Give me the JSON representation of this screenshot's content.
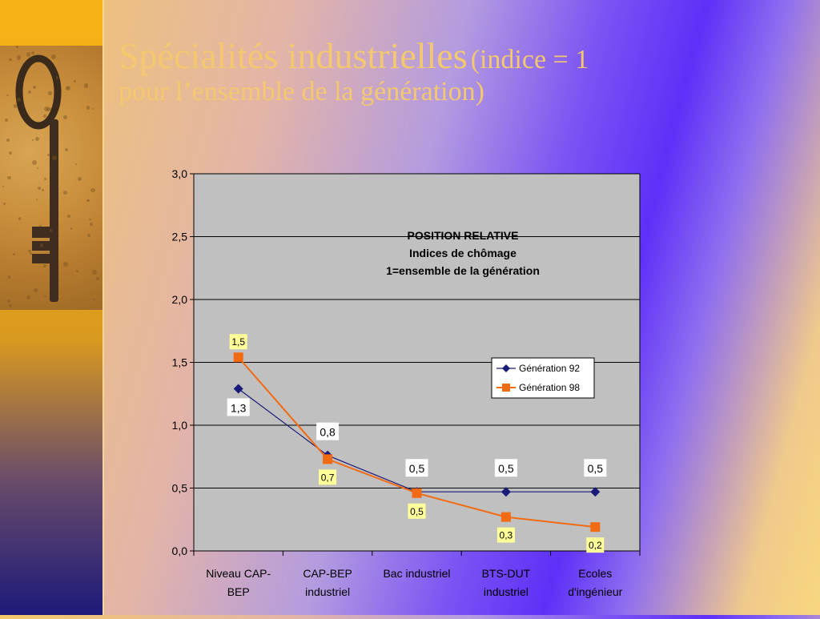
{
  "slide": {
    "title_main": "Spécialités industrielles",
    "title_paren": "(indice = 1",
    "title_line2": "pour l’ensemble de la génération)"
  },
  "colors": {
    "series_92": "#1a1a7a",
    "series_98": "#f26b12",
    "plot_bg": "#c0c0c0",
    "label_box_98": "#ffff99"
  },
  "chart_data": {
    "type": "line",
    "title_lines": [
      "POSITION RELATIVE",
      "Indices de chômage",
      "1=ensemble de la génération"
    ],
    "categories": [
      [
        "Niveau CAP-",
        "BEP"
      ],
      [
        "CAP-BEP",
        "industriel"
      ],
      [
        "Bac industriel"
      ],
      [
        "BTS-DUT",
        "industriel"
      ],
      [
        "Ecoles",
        "d'ingénieur"
      ]
    ],
    "series": [
      {
        "name": "Génération 92",
        "marker": "diamond",
        "values": [
          1.29,
          0.76,
          0.47,
          0.47,
          0.47
        ],
        "labels": [
          "1,3",
          "0,8",
          "0,5",
          "0,5",
          "0,5"
        ]
      },
      {
        "name": "Génération 98",
        "marker": "square",
        "values": [
          1.54,
          0.73,
          0.46,
          0.27,
          0.19
        ],
        "labels": [
          "1,5",
          "0,7",
          "0,5",
          "0,3",
          "0,2"
        ]
      }
    ],
    "ylim": [
      0,
      3
    ],
    "yticks": [
      "0,0",
      "0,5",
      "1,0",
      "1,5",
      "2,0",
      "2,5",
      "3,0"
    ],
    "grid": true,
    "legend_position": "right"
  }
}
